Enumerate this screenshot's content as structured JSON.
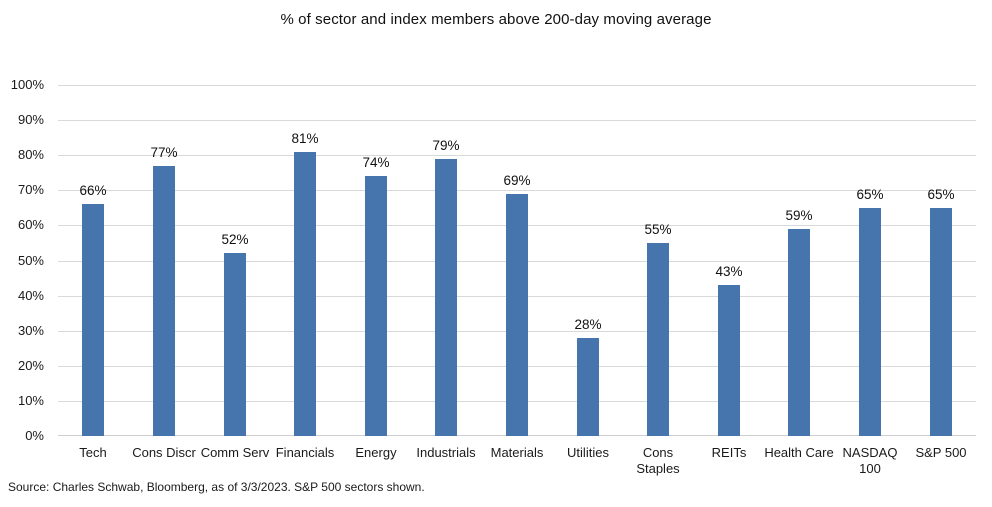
{
  "chart_data": {
    "type": "bar",
    "title": "% of sector and index members above 200-day moving average",
    "categories": [
      "Tech",
      "Cons Discr",
      "Comm Serv",
      "Financials",
      "Energy",
      "Industrials",
      "Materials",
      "Utilities",
      "Cons\nStaples",
      "REITs",
      "Health Care",
      "NASDAQ\n100",
      "S&P 500"
    ],
    "values": [
      66,
      77,
      52,
      81,
      74,
      79,
      69,
      28,
      55,
      43,
      59,
      65,
      65
    ],
    "value_labels": [
      "66%",
      "77%",
      "52%",
      "81%",
      "74%",
      "79%",
      "69%",
      "28%",
      "55%",
      "43%",
      "59%",
      "65%",
      "65%"
    ],
    "xlabel": "",
    "ylabel": "",
    "ylim": [
      0,
      100
    ],
    "yticks": [
      "0%",
      "10%",
      "20%",
      "30%",
      "40%",
      "50%",
      "60%",
      "70%",
      "80%",
      "90%",
      "100%"
    ],
    "grid": "horizontal",
    "legend": "none",
    "colors": {
      "bar": "#4674AC",
      "gridline": "#D9D9D9",
      "axis_line": "#CFCFCF",
      "text": "#1A1A1A"
    }
  },
  "footer": {
    "source": "Source: Charles Schwab, Bloomberg, as of 3/3/2023. S&P 500 sectors shown."
  }
}
